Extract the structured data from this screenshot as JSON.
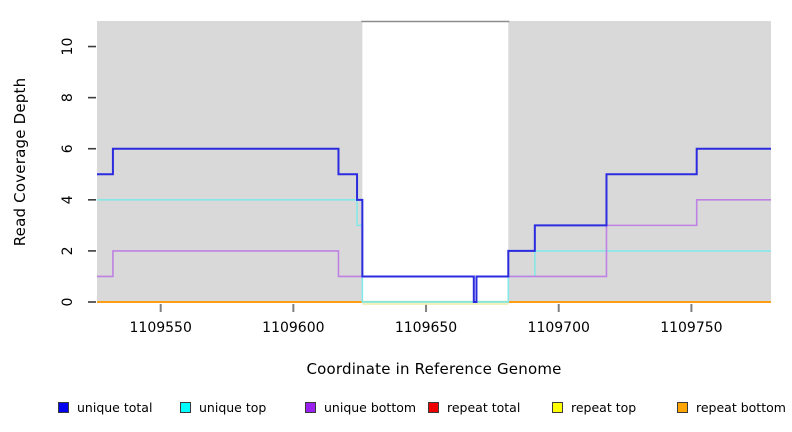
{
  "chart_data": {
    "type": "line",
    "subtype": "step-after-coverage-plot",
    "title": "",
    "xlabel": "Coordinate in Reference Genome",
    "ylabel": "Read Coverage Depth",
    "xlim": [
      1109526,
      1109780
    ],
    "ylim": [
      0,
      11
    ],
    "x_ticks": [
      1109550,
      1109600,
      1109650,
      1109700,
      1109750
    ],
    "y_ticks": [
      0,
      2,
      4,
      6,
      8,
      10
    ],
    "grid": false,
    "legend_position": "bottom",
    "plot_background": "#ffffff",
    "shaded_regions": [
      {
        "x0": 1109526,
        "x1": 1109626,
        "color": "#d9d9d9"
      },
      {
        "x0": 1109681,
        "x1": 1109780,
        "color": "#d9d9d9"
      }
    ],
    "gap_region": {
      "x0": 1109626,
      "x1": 1109681,
      "top_border_color": "#8e8e8e",
      "baseline_green_color": "#98d898",
      "baseline_yellow_color": "#f0efb2"
    },
    "series": [
      {
        "name": "unique total",
        "line_color": "#2b2bdf",
        "legend_color": "#0000ee",
        "line_width": 2,
        "points": [
          [
            1109526,
            5
          ],
          [
            1109532,
            6
          ],
          [
            1109617,
            5
          ],
          [
            1109624,
            4
          ],
          [
            1109626,
            1
          ],
          [
            1109668,
            0
          ],
          [
            1109669,
            1
          ],
          [
            1109681,
            2
          ],
          [
            1109691,
            3
          ],
          [
            1109718,
            5
          ],
          [
            1109752,
            6
          ],
          [
            1109780,
            6
          ]
        ]
      },
      {
        "name": "unique top",
        "line_color": "#85e8e8",
        "legend_color": "#00ffff",
        "line_width": 1.6,
        "points": [
          [
            1109526,
            4
          ],
          [
            1109624,
            3
          ],
          [
            1109626,
            0
          ],
          [
            1109681,
            1
          ],
          [
            1109691,
            2
          ],
          [
            1109780,
            2
          ]
        ]
      },
      {
        "name": "unique bottom",
        "line_color": "#bf82e2",
        "legend_color": "#9a20f0",
        "line_width": 1.6,
        "points": [
          [
            1109526,
            1
          ],
          [
            1109532,
            2
          ],
          [
            1109617,
            1
          ],
          [
            1109626,
            1
          ],
          [
            1109668,
            0
          ],
          [
            1109669,
            1
          ],
          [
            1109718,
            3
          ],
          [
            1109752,
            4
          ],
          [
            1109780,
            4
          ]
        ]
      },
      {
        "name": "repeat total",
        "line_color": "#e05252",
        "legend_color": "#ee0000",
        "line_width": 1.6,
        "points": [
          [
            1109526,
            0
          ],
          [
            1109780,
            0
          ]
        ]
      },
      {
        "name": "repeat top",
        "line_color": "#f0efb2",
        "legend_color": "#ffff00",
        "line_width": 1.6,
        "points": [
          [
            1109526,
            0
          ],
          [
            1109780,
            0
          ]
        ]
      },
      {
        "name": "repeat bottom",
        "line_color": "#ff9d14",
        "legend_color": "#ffa500",
        "line_width": 2,
        "points": [
          [
            1109526,
            0
          ],
          [
            1109780,
            0
          ]
        ]
      }
    ]
  },
  "axis_style": {
    "x_tick_color": "#808080",
    "y_tick_color": "#3c3c3c",
    "tick_label_color": "#000000",
    "tick_label_size": 14
  },
  "legend": {
    "items": [
      {
        "label": "unique total",
        "color": "#0000ee"
      },
      {
        "label": "unique top",
        "color": "#00ffff"
      },
      {
        "label": "unique bottom",
        "color": "#9a20f0"
      },
      {
        "label": "repeat total",
        "color": "#ee0000"
      },
      {
        "label": "repeat top",
        "color": "#ffff00"
      },
      {
        "label": "repeat bottom",
        "color": "#ffa500"
      }
    ]
  }
}
